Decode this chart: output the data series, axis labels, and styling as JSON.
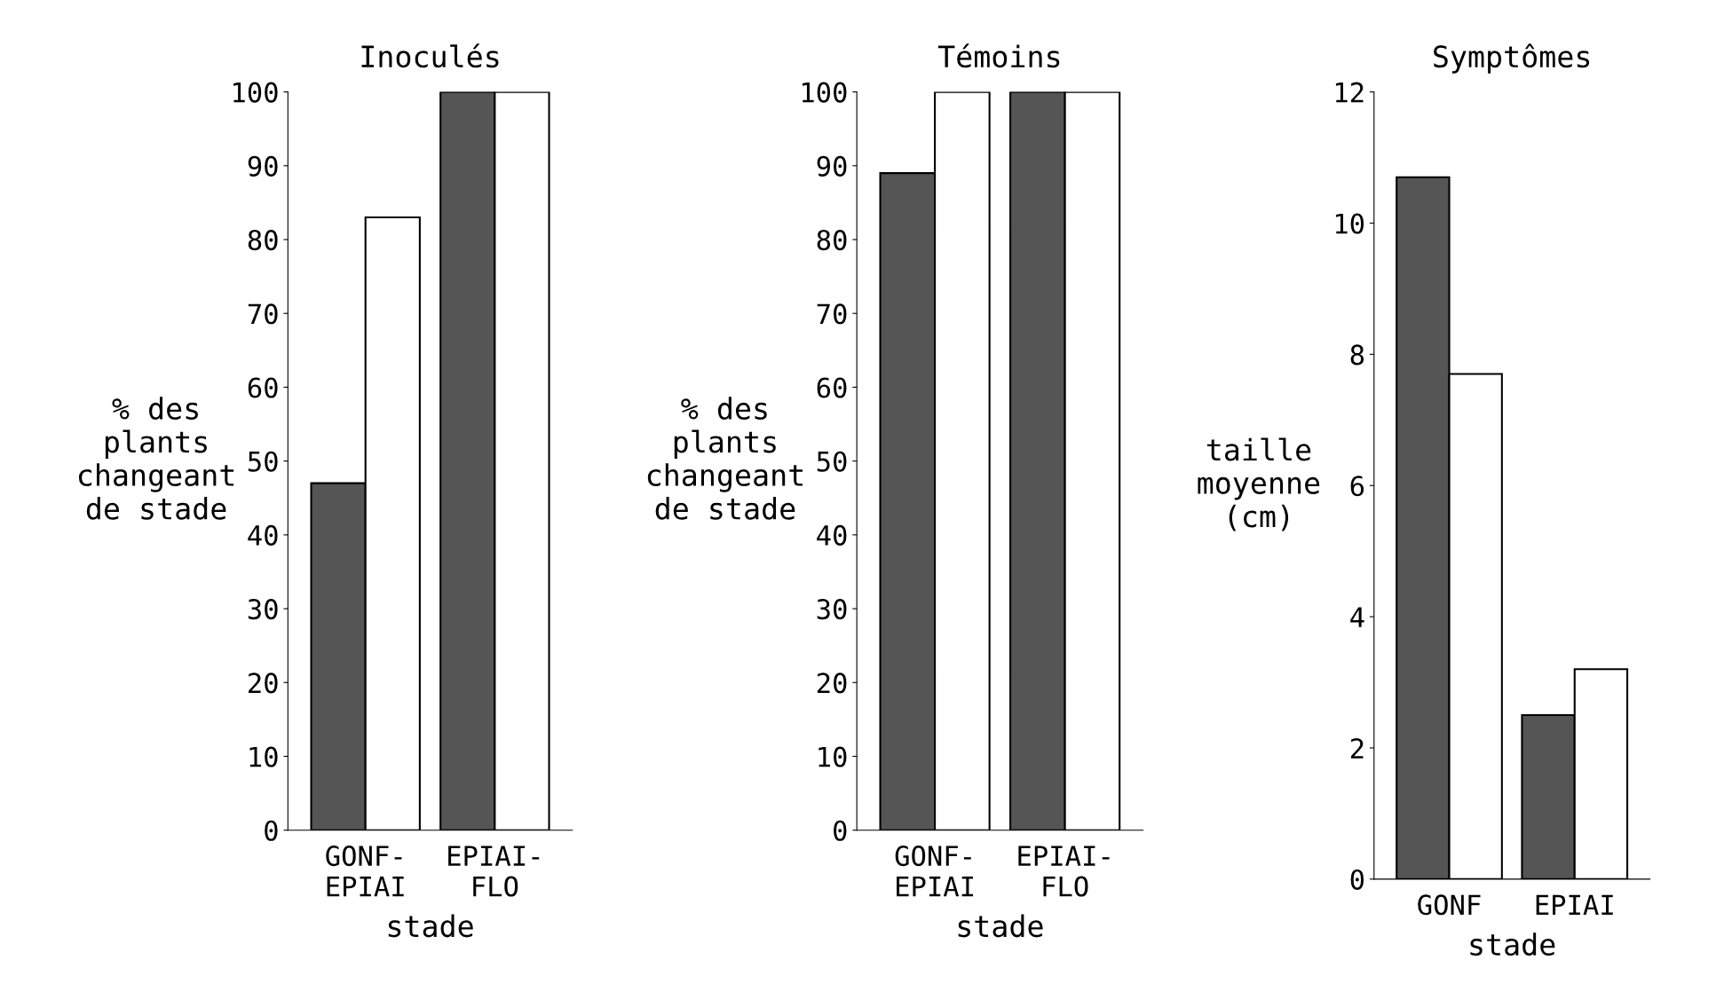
{
  "chart_data": [
    {
      "type": "bar",
      "title": "Inoculés",
      "xlabel": "stade",
      "ylabel": "% des\nplants\nchangeant\nde stade",
      "categories": [
        "GONF-\nEPIAI",
        "EPIAI-\nFLO"
      ],
      "series": [
        {
          "color": "#555555",
          "values": [
            47,
            100
          ]
        },
        {
          "color": "#ffffff",
          "values": [
            83,
            100
          ]
        }
      ],
      "ylim": [
        0,
        100
      ],
      "yticks": [
        0,
        10,
        20,
        30,
        40,
        50,
        60,
        70,
        80,
        90,
        100
      ],
      "grid": false
    },
    {
      "type": "bar",
      "title": "Témoins",
      "xlabel": "stade",
      "ylabel": "% des\nplants\nchangeant\nde stade",
      "categories": [
        "GONF-\nEPIAI",
        "EPIAI-\nFLO"
      ],
      "series": [
        {
          "color": "#555555",
          "values": [
            89,
            100
          ]
        },
        {
          "color": "#ffffff",
          "values": [
            100,
            100
          ]
        }
      ],
      "ylim": [
        0,
        100
      ],
      "yticks": [
        0,
        10,
        20,
        30,
        40,
        50,
        60,
        70,
        80,
        90,
        100
      ],
      "grid": false
    },
    {
      "type": "bar",
      "title": "Symptômes",
      "xlabel": "stade",
      "ylabel": "taille\nmoyenne\n(cm)",
      "categories": [
        "GONF",
        "EPIAI"
      ],
      "series": [
        {
          "color": "#555555",
          "values": [
            10.7,
            2.5
          ]
        },
        {
          "color": "#ffffff",
          "values": [
            7.7,
            3.2
          ]
        }
      ],
      "ylim": [
        0,
        12
      ],
      "yticks": [
        0,
        2,
        4,
        6,
        8,
        10,
        12
      ],
      "grid": false
    }
  ]
}
